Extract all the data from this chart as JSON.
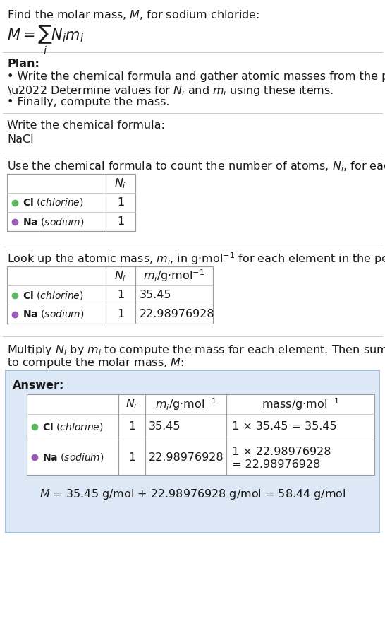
{
  "bg_color": "#ffffff",
  "text_color": "#1a1a1a",
  "line_color": "#cccccc",
  "answer_bg": "#dce8f5",
  "answer_border": "#9ab4cc",
  "table_border": "#999999",
  "cl_color": "#5cb85c",
  "na_color": "#9b59b6",
  "elements": [
    {
      "symbol": "Cl",
      "name": "chlorine",
      "N_i": "1",
      "m_i": "35.45",
      "mass_line1": "1 × 35.45 = 35.45",
      "mass_line2": ""
    },
    {
      "symbol": "Na",
      "name": "sodium",
      "N_i": "1",
      "m_i": "22.98976928",
      "mass_line1": "1 × 22.98976928",
      "mass_line2": "= 22.98976928"
    }
  ],
  "el_colors": [
    "#5cb85c",
    "#9b59b6"
  ]
}
